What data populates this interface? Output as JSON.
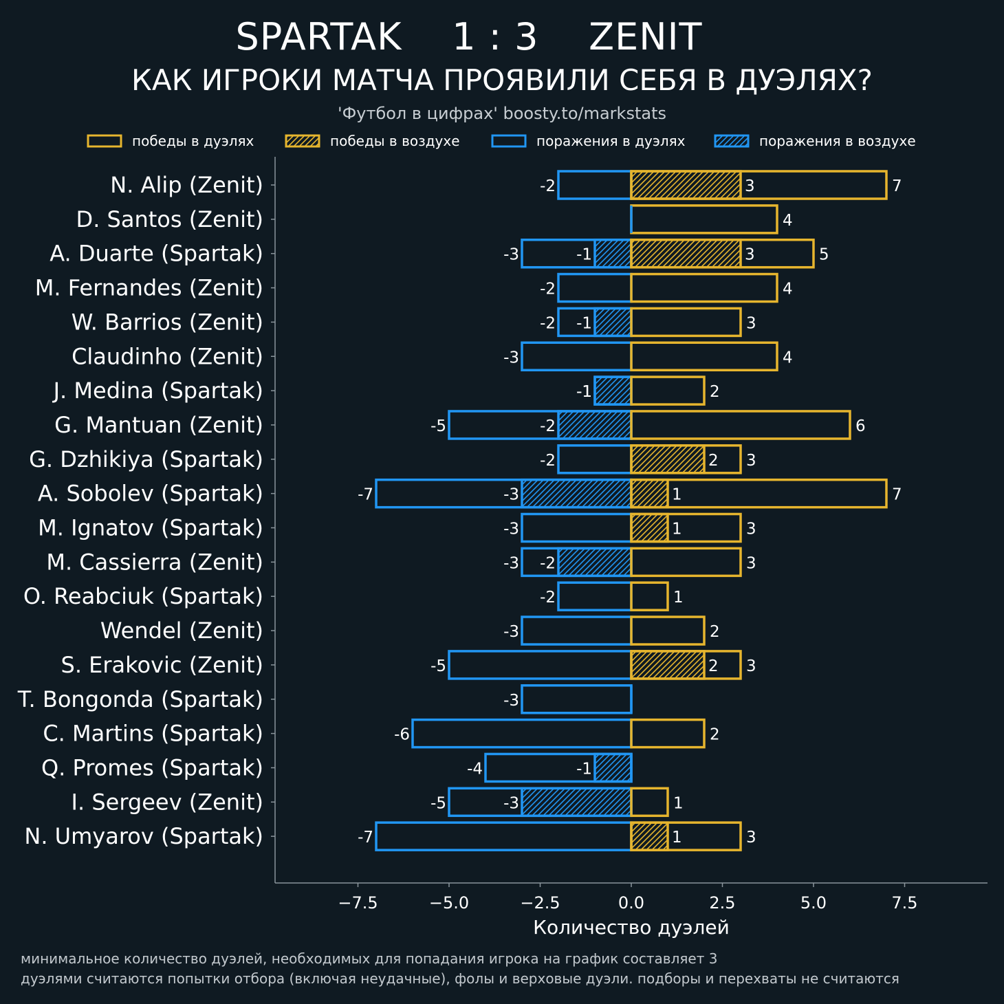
{
  "header": {
    "title": "SPARTAK    1 : 3    ZENIT",
    "subtitle": "КАК ИГРОКИ МАТЧА ПРОЯВИЛИ СЕБЯ В ДУЭЛЯХ?",
    "source": "'Футбол в цифрах' boosty.to/markstats"
  },
  "footnotes": [
    "минимальное количество дуэлей, необходимых для попадания игрока на график составляет 3",
    "дуэлями считаются попытки отбора (включая неудачные), фолы и верховые дуэли. подборы и перехваты не считаются"
  ],
  "colors": {
    "wins": "#e6b52e",
    "losses": "#2196f3",
    "background": "#0f1a22",
    "axis": "#8a959c"
  },
  "chart_data": {
    "type": "bar",
    "orientation": "horizontal",
    "xlabel": "Количество дуэлей",
    "xlim": [
      -9.8,
      9.8
    ],
    "xticks": [
      -7.5,
      -5.0,
      -2.5,
      0.0,
      2.5,
      5.0,
      7.5
    ],
    "xtick_labels": [
      "−7.5",
      "−5.0",
      "−2.5",
      "0.0",
      "2.5",
      "5.0",
      "7.5"
    ],
    "legend": {
      "placement": "top",
      "entries": [
        {
          "name": "победы в дуэлях",
          "color": "#e6b52e",
          "hatched": false
        },
        {
          "name": "победы в воздухе",
          "color": "#e6b52e",
          "hatched": true
        },
        {
          "name": "поражения в дуэлях",
          "color": "#2196f3",
          "hatched": false
        },
        {
          "name": "поражения в воздухе",
          "color": "#2196f3",
          "hatched": true
        }
      ]
    },
    "categories": [
      "N. Alip (Zenit)",
      "D. Santos (Zenit)",
      "A. Duarte (Spartak)",
      "M. Fernandes (Zenit)",
      "W. Barrios (Zenit)",
      "Claudinho (Zenit)",
      "J. Medina (Spartak)",
      "G. Mantuan (Zenit)",
      "G. Dzhikiya (Spartak)",
      "A. Sobolev (Spartak)",
      "M. Ignatov (Spartak)",
      "M. Cassierra (Zenit)",
      "O. Reabciuk (Spartak)",
      "Wendel (Zenit)",
      "S. Erakovic (Zenit)",
      "T. Bongonda (Spartak)",
      "C. Martins (Spartak)",
      "Q. Promes (Spartak)",
      "I. Sergeev (Zenit)",
      "N. Umyarov (Spartak)"
    ],
    "series": [
      {
        "name": "победы в дуэлях",
        "values": [
          7,
          4,
          5,
          4,
          3,
          4,
          2,
          6,
          3,
          7,
          3,
          3,
          1,
          2,
          3,
          0,
          2,
          0,
          1,
          3
        ]
      },
      {
        "name": "победы в воздухе",
        "values": [
          3,
          0,
          3,
          0,
          0,
          0,
          0,
          0,
          2,
          1,
          1,
          0,
          0,
          0,
          2,
          0,
          0,
          0,
          0,
          1
        ]
      },
      {
        "name": "поражения в дуэлях",
        "values": [
          -2,
          0,
          -3,
          -2,
          -2,
          -3,
          -1,
          -5,
          -2,
          -7,
          -3,
          -3,
          -2,
          -3,
          -5,
          -3,
          -6,
          -4,
          -5,
          -7
        ]
      },
      {
        "name": "поражения в воздухе",
        "values": [
          0,
          0,
          -1,
          0,
          -1,
          0,
          -1,
          -2,
          0,
          -3,
          0,
          -2,
          0,
          0,
          0,
          0,
          0,
          -1,
          -3,
          0
        ]
      }
    ]
  }
}
